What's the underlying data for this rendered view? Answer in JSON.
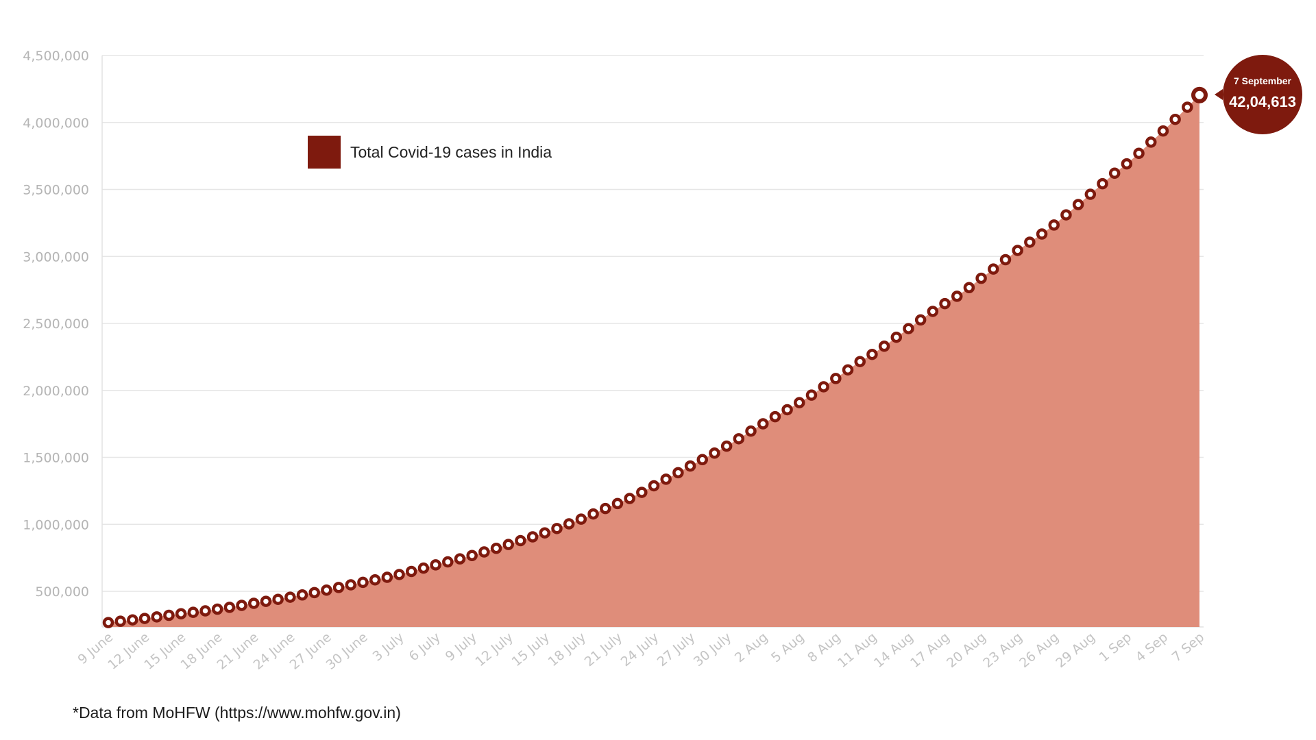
{
  "chart_data": {
    "type": "area",
    "title": "",
    "xlabel": "",
    "ylabel": "",
    "series": [
      {
        "name": "Total Covid-19 cases in India",
        "color": "#7e1a0e",
        "fill": "#df8d7a"
      }
    ],
    "x_start": "9 June",
    "x_end": "7 Sep",
    "days": 91,
    "x_tick_labels": [
      "9 June",
      "12 June",
      "15 June",
      "18 June",
      "21 June",
      "24 June",
      "27 June",
      "30 June",
      "3 July",
      "6 July",
      "9 July",
      "12 July",
      "15 July",
      "18 July",
      "21 July",
      "24 July",
      "27 July",
      "30 July",
      "2 Aug",
      "5 Aug",
      "8 Aug",
      "11 Aug",
      "14 Aug",
      "17 Aug",
      "20 Aug",
      "23 Aug",
      "26 Aug",
      "29 Aug",
      "1 Sep",
      "4 Sep",
      "7 Sep"
    ],
    "y_tick_labels": [
      "500,000",
      "1,000,000",
      "1,500,000",
      "2,000,000",
      "2,500,000",
      "3,000,000",
      "3,500,000",
      "4,000,000",
      "4,500,000"
    ],
    "y_ticks": [
      500000,
      1000000,
      1500000,
      2000000,
      2500000,
      3000000,
      3500000,
      4000000,
      4500000
    ],
    "ylim": [
      230000,
      4500000
    ],
    "grid": true,
    "legend_position": "top-left",
    "values": [
      266598,
      276583,
      286579,
      297535,
      308993,
      320922,
      332424,
      343091,
      354065,
      366946,
      380532,
      395048,
      410461,
      425282,
      440215,
      456183,
      473105,
      490401,
      508953,
      528859,
      548318,
      566840,
      585493,
      604641,
      625544,
      648315,
      673165,
      697413,
      719665,
      742417,
      767296,
      793802,
      820916,
      849553,
      878254,
      906752,
      936181,
      968876,
      1003832,
      1038716,
      1077618,
      1118043,
      1155191,
      1193078,
      1238635,
      1287945,
      1336861,
      1385522,
      1435453,
      1483156,
      1531669,
      1583792,
      1638870,
      1695988,
      1750723,
      1803695,
      1855745,
      1908254,
      1964536,
      2027074,
      2088611,
      2153010,
      2215074,
      2268675,
      2329638,
      2396637,
      2461190,
      2525922,
      2589682,
      2647663,
      2702742,
      2767273,
      2836925,
      2905825,
      2975701,
      3044940,
      3106348,
      3167323,
      3234474,
      3310234,
      3387500,
      3463972,
      3542733,
      3621245,
      3691166,
      3769523,
      3853406,
      3936747,
      4023179,
      4113811,
      4204613
    ],
    "annotation": {
      "date": "7 September",
      "value": "42,04,613"
    }
  },
  "legend": {
    "label": "Total Covid-19 cases in India"
  },
  "footer": {
    "source": "*Data from MoHFW (https://www.mohfw.gov.in)"
  },
  "callout": {
    "date": "7 September",
    "value": "42,04,613"
  }
}
